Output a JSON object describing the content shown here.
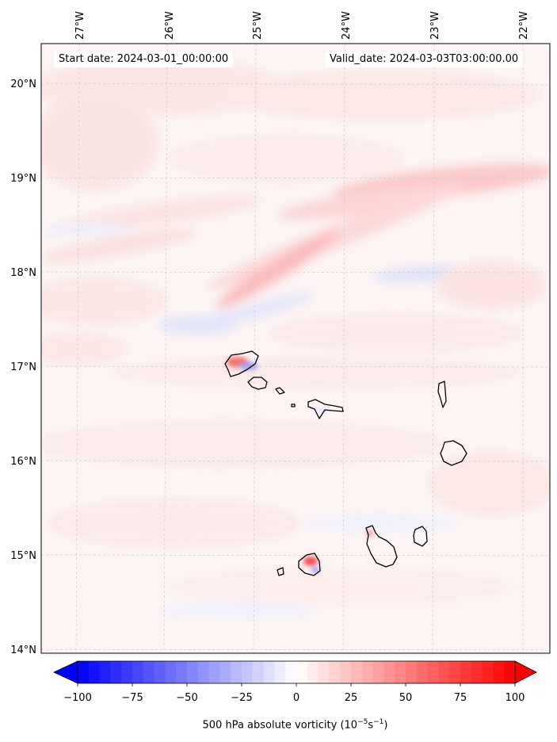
{
  "map": {
    "lon_ticks": [
      "27°W",
      "26°W",
      "25°W",
      "24°W",
      "23°W",
      "22°W"
    ],
    "lat_ticks": [
      "20°N",
      "19°N",
      "18°N",
      "17°N",
      "16°N",
      "15°N",
      "14°N"
    ],
    "start_date": "Start date: 2024-03-01_00:00:00",
    "valid_date": "Valid_date: 2024-03-03T03:00:00.00",
    "field": "500 hPa absolute vorticity",
    "colormap": {
      "negative": "#0000ff",
      "zero": "#ffffff",
      "positive": "#ff0000"
    },
    "islands": [
      "Santo Antão",
      "São Vicente",
      "Santa Luzia",
      "São Nicolau",
      "Sal",
      "Boa Vista",
      "Brava",
      "Fogo",
      "Santiago",
      "Maio"
    ]
  },
  "colorbar": {
    "ticks": [
      "−100",
      "−75",
      "−50",
      "−25",
      "0",
      "25",
      "50",
      "75",
      "100"
    ],
    "range": [
      -100,
      100
    ],
    "extend": "both",
    "label_text": "500 hPa absolute vorticity",
    "label_unit_base": "(10",
    "label_unit_exp1": "−5",
    "label_unit_mid": "s",
    "label_unit_exp2": "−1",
    "label_unit_end": ")"
  }
}
